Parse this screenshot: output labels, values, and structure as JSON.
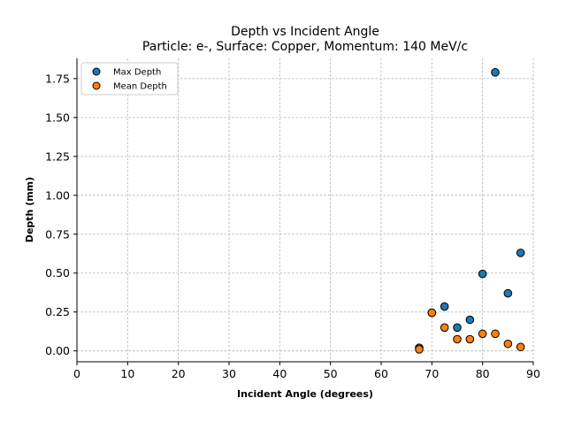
{
  "chart_data": {
    "type": "scatter",
    "title": "Depth vs Incident Angle",
    "subtitle": "Particle: e-, Surface: Copper, Momentum: 140 MeV/c",
    "xlabel": "Incident Angle (degrees)",
    "ylabel": "Depth (mm)",
    "xlim": [
      0,
      90
    ],
    "ylim": [
      -0.07,
      1.88
    ],
    "xticks": [
      0,
      10,
      20,
      30,
      40,
      50,
      60,
      70,
      80,
      90
    ],
    "xtick_labels": [
      "0",
      "10",
      "20",
      "30",
      "40",
      "50",
      "60",
      "70",
      "80",
      "90"
    ],
    "yticks": [
      0,
      0.25,
      0.5,
      0.75,
      1.0,
      1.25,
      1.5,
      1.75
    ],
    "ytick_labels": [
      "0.00",
      "0.25",
      "0.50",
      "0.75",
      "1.00",
      "1.25",
      "1.50",
      "1.75"
    ],
    "grid": true,
    "legend_position": "upper-left",
    "series": [
      {
        "name": "Max Depth",
        "color": "#1f77b4",
        "points": [
          {
            "x": 67.5,
            "y": 0.02
          },
          {
            "x": 70.0,
            "y": 0.245
          },
          {
            "x": 72.5,
            "y": 0.285
          },
          {
            "x": 75.0,
            "y": 0.15
          },
          {
            "x": 77.5,
            "y": 0.2
          },
          {
            "x": 80.0,
            "y": 0.495
          },
          {
            "x": 82.5,
            "y": 1.79
          },
          {
            "x": 85.0,
            "y": 0.37
          },
          {
            "x": 87.5,
            "y": 0.63
          }
        ]
      },
      {
        "name": "Mean Depth",
        "color": "#ff7f0e",
        "points": [
          {
            "x": 67.5,
            "y": 0.01
          },
          {
            "x": 70.0,
            "y": 0.245
          },
          {
            "x": 72.5,
            "y": 0.15
          },
          {
            "x": 75.0,
            "y": 0.075
          },
          {
            "x": 77.5,
            "y": 0.075
          },
          {
            "x": 80.0,
            "y": 0.11
          },
          {
            "x": 82.5,
            "y": 0.11
          },
          {
            "x": 85.0,
            "y": 0.045
          },
          {
            "x": 87.5,
            "y": 0.025
          }
        ]
      }
    ]
  }
}
